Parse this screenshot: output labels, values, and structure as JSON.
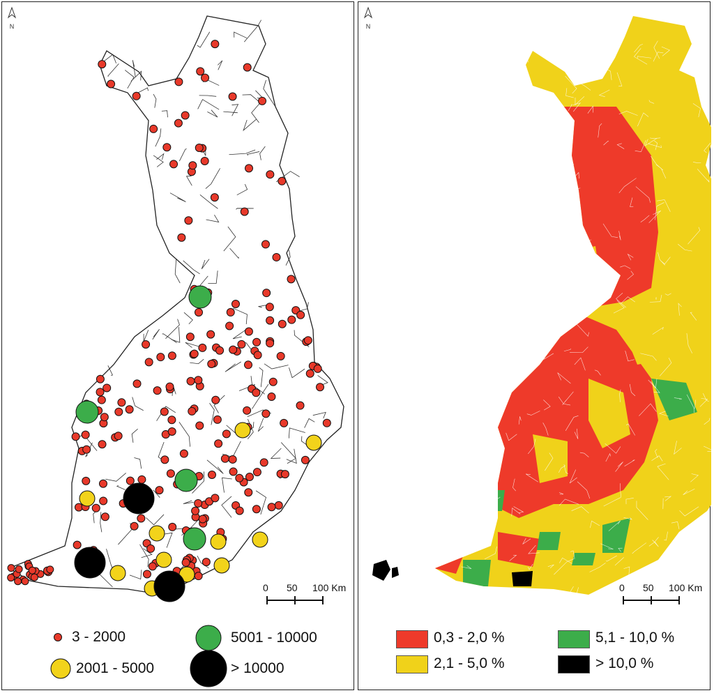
{
  "left_map": {
    "legend": [
      {
        "label": "3 - 2000",
        "color": "#e8392a"
      },
      {
        "label": "2001 - 5000",
        "color": "#f2d31b"
      },
      {
        "label": "5001 - 10000",
        "color": "#3cad4a"
      },
      {
        "label": "> 10000",
        "color": "#000000"
      }
    ],
    "scale": {
      "ticks": [
        "0",
        "50",
        "100 Km"
      ]
    },
    "north": "N"
  },
  "right_map": {
    "legend": [
      {
        "label": "0,3 - 2,0 %",
        "color": "#ee3a2a"
      },
      {
        "label": "2,1 - 5,0 %",
        "color": "#f0d21a"
      },
      {
        "label": "5,1 - 10,0 %",
        "color": "#3cad4a"
      },
      {
        "label": "> 10,0 %",
        "color": "#000000"
      }
    ],
    "scale": {
      "ticks": [
        "0",
        "50",
        "100 Km"
      ]
    },
    "north": "N"
  }
}
